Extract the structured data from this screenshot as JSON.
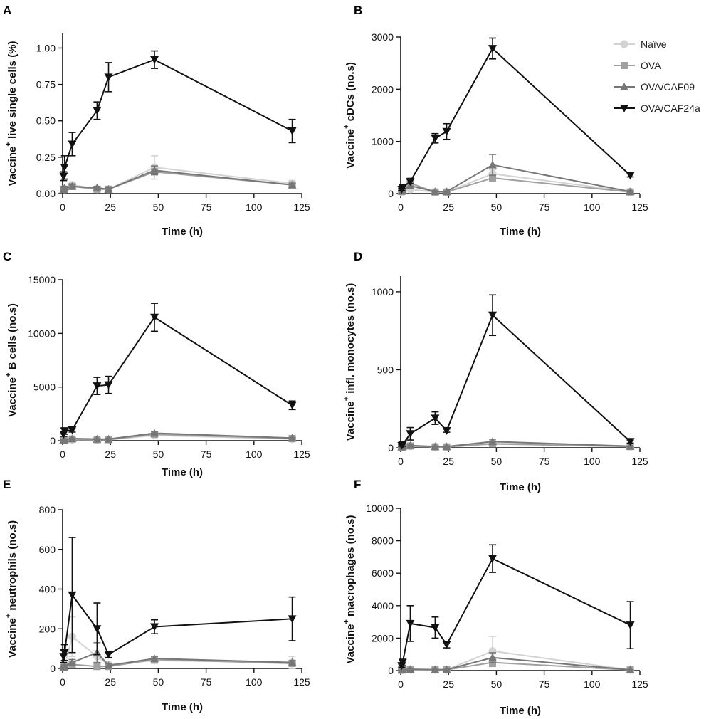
{
  "figure": {
    "x_label": "Time (h)"
  },
  "legend": [
    {
      "name": "Naïve",
      "color": "#d3d3d3",
      "marker": "circle"
    },
    {
      "name": "OVA",
      "color": "#a0a0a0",
      "marker": "square"
    },
    {
      "name": "OVA/CAF09",
      "color": "#777777",
      "marker": "triangle-up"
    },
    {
      "name": "OVA/CAF24a",
      "color": "#111111",
      "marker": "triangle-down"
    }
  ],
  "chart_data": [
    {
      "panel": "A",
      "type": "line",
      "ylabel_pre": "Vaccine",
      "ylabel_post": " live single cells (%)",
      "xlabel": "Time (h)",
      "xlim": [
        0,
        125
      ],
      "ylim": [
        0,
        1.1
      ],
      "x_ticks": [
        "0",
        "25",
        "50",
        "75",
        "100",
        "125"
      ],
      "y_ticks": [
        0,
        0.25,
        0.5,
        0.75,
        1.0
      ],
      "y_tick_labels": [
        "0.00",
        "0.25",
        "0.50",
        "0.75",
        "1.00"
      ],
      "x": [
        0.5,
        1,
        5,
        18,
        24,
        48,
        120
      ],
      "series": [
        {
          "name": "Naïve",
          "values": [
            0.03,
            0.03,
            0.06,
            0.03,
            0.03,
            0.18,
            0.07
          ],
          "err": [
            0.01,
            0.01,
            0.01,
            0.01,
            0.01,
            0.08,
            0.02
          ]
        },
        {
          "name": "OVA",
          "values": [
            0.03,
            0.03,
            0.05,
            0.03,
            0.03,
            0.15,
            0.06
          ],
          "err": [
            0.01,
            0.01,
            0.01,
            0.01,
            0.01,
            0.02,
            0.01
          ]
        },
        {
          "name": "OVA/CAF09",
          "values": [
            0.03,
            0.04,
            0.05,
            0.04,
            0.03,
            0.16,
            0.06
          ],
          "err": [
            0.01,
            0.01,
            0.01,
            0.01,
            0.01,
            0.03,
            0.01
          ]
        },
        {
          "name": "OVA/CAF24a",
          "values": [
            0.12,
            0.18,
            0.34,
            0.57,
            0.8,
            0.92,
            0.43
          ],
          "err": [
            0.03,
            0.08,
            0.08,
            0.06,
            0.1,
            0.06,
            0.08
          ]
        }
      ]
    },
    {
      "panel": "B",
      "type": "line",
      "ylabel_pre": "Vaccine",
      "ylabel_post": " cDCs (no.s)",
      "xlabel": "Time (h)",
      "xlim": [
        0,
        125
      ],
      "ylim": [
        0,
        3000
      ],
      "x_ticks": [
        "0",
        "25",
        "50",
        "75",
        "100",
        "125"
      ],
      "y_ticks": [
        0,
        1000,
        2000,
        3000
      ],
      "y_tick_labels": [
        "0",
        "1000",
        "2000",
        "3000"
      ],
      "x": [
        0.5,
        1,
        5,
        18,
        24,
        48,
        120
      ],
      "series": [
        {
          "name": "Naïve",
          "values": [
            30,
            40,
            80,
            30,
            30,
            380,
            40
          ],
          "err": [
            10,
            10,
            20,
            10,
            10,
            80,
            10
          ]
        },
        {
          "name": "OVA",
          "values": [
            40,
            60,
            200,
            30,
            30,
            300,
            30
          ],
          "err": [
            10,
            20,
            100,
            10,
            10,
            60,
            10
          ]
        },
        {
          "name": "OVA/CAF09",
          "values": [
            50,
            70,
            150,
            40,
            40,
            550,
            40
          ],
          "err": [
            10,
            20,
            50,
            10,
            10,
            200,
            10
          ]
        },
        {
          "name": "OVA/CAF24a",
          "values": [
            80,
            120,
            230,
            1060,
            1190,
            2780,
            350
          ],
          "err": [
            20,
            30,
            40,
            90,
            150,
            200,
            30
          ]
        }
      ]
    },
    {
      "panel": "C",
      "type": "line",
      "ylabel_pre": "Vaccine",
      "ylabel_post": " B cells (no.s)",
      "xlabel": "Time (h)",
      "xlim": [
        0,
        125
      ],
      "ylim": [
        0,
        15000
      ],
      "x_ticks": [
        "0",
        "25",
        "50",
        "75",
        "100",
        "125"
      ],
      "y_ticks": [
        0,
        5000,
        10000,
        15000
      ],
      "y_tick_labels": [
        "0",
        "5000",
        "10000",
        "15000"
      ],
      "x": [
        0.5,
        1,
        5,
        18,
        24,
        48,
        120
      ],
      "series": [
        {
          "name": "Naïve",
          "values": [
            50,
            60,
            100,
            80,
            80,
            500,
            150
          ],
          "err": [
            20,
            20,
            30,
            30,
            30,
            100,
            50
          ]
        },
        {
          "name": "OVA",
          "values": [
            60,
            80,
            150,
            100,
            100,
            600,
            200
          ],
          "err": [
            20,
            20,
            40,
            30,
            30,
            150,
            50
          ]
        },
        {
          "name": "OVA/CAF09",
          "values": [
            70,
            90,
            200,
            150,
            150,
            700,
            250
          ],
          "err": [
            20,
            20,
            50,
            40,
            40,
            150,
            60
          ]
        },
        {
          "name": "OVA/CAF24a",
          "values": [
            600,
            900,
            1000,
            5100,
            5200,
            11500,
            3300
          ],
          "err": [
            200,
            300,
            200,
            800,
            800,
            1300,
            400
          ]
        }
      ]
    },
    {
      "panel": "D",
      "type": "line",
      "ylabel_pre": "Vaccine",
      "ylabel_post": " infl. monocytes (no.s)",
      "xlabel": "Time (h)",
      "xlim": [
        0,
        125
      ],
      "ylim": [
        0,
        1100
      ],
      "x_ticks": [
        "0",
        "25",
        "50",
        "75",
        "100",
        "125"
      ],
      "y_ticks": [
        0,
        500,
        1000
      ],
      "y_tick_labels": [
        "0",
        "500",
        "1000"
      ],
      "x": [
        0.5,
        1,
        5,
        18,
        24,
        48,
        120
      ],
      "series": [
        {
          "name": "Naïve",
          "values": [
            5,
            5,
            10,
            5,
            5,
            30,
            8
          ],
          "err": [
            2,
            2,
            5,
            2,
            2,
            10,
            3
          ]
        },
        {
          "name": "OVA",
          "values": [
            5,
            6,
            12,
            6,
            6,
            25,
            8
          ],
          "err": [
            2,
            2,
            5,
            2,
            2,
            10,
            3
          ]
        },
        {
          "name": "OVA/CAF09",
          "values": [
            6,
            8,
            15,
            8,
            8,
            40,
            10
          ],
          "err": [
            2,
            3,
            5,
            3,
            3,
            15,
            3
          ]
        },
        {
          "name": "OVA/CAF24a",
          "values": [
            15,
            20,
            90,
            190,
            110,
            850,
            40
          ],
          "err": [
            5,
            10,
            40,
            40,
            10,
            130,
            10
          ]
        }
      ]
    },
    {
      "panel": "E",
      "type": "line",
      "ylabel_pre": "Vaccine",
      "ylabel_post": " neutrophils (no.s)",
      "xlabel": "Time (h)",
      "xlim": [
        0,
        125
      ],
      "ylim": [
        0,
        800
      ],
      "x_ticks": [
        "0",
        "25",
        "50",
        "75",
        "100",
        "125"
      ],
      "y_ticks": [
        0,
        200,
        400,
        600,
        800
      ],
      "y_tick_labels": [
        "0",
        "200",
        "400",
        "600",
        "800"
      ],
      "x": [
        0.5,
        1,
        5,
        18,
        24,
        48,
        120
      ],
      "series": [
        {
          "name": "Naïve",
          "values": [
            5,
            10,
            160,
            60,
            20,
            40,
            30
          ],
          "err": [
            3,
            5,
            100,
            30,
            10,
            15,
            30
          ]
        },
        {
          "name": "OVA",
          "values": [
            5,
            8,
            20,
            10,
            10,
            45,
            25
          ],
          "err": [
            3,
            4,
            10,
            5,
            5,
            10,
            10
          ]
        },
        {
          "name": "OVA/CAF09",
          "values": [
            8,
            12,
            30,
            80,
            15,
            50,
            30
          ],
          "err": [
            4,
            6,
            15,
            50,
            8,
            12,
            10
          ]
        },
        {
          "name": "OVA/CAF24a",
          "values": [
            60,
            80,
            370,
            200,
            70,
            210,
            250
          ],
          "err": [
            30,
            40,
            290,
            130,
            15,
            35,
            110
          ]
        }
      ]
    },
    {
      "panel": "F",
      "type": "line",
      "ylabel_pre": "Vaccine",
      "ylabel_post": " macrophages (no.s)",
      "xlabel": "Time (h)",
      "xlim": [
        0,
        125
      ],
      "ylim": [
        0,
        10000
      ],
      "x_ticks": [
        "0",
        "25",
        "50",
        "75",
        "100",
        "125"
      ],
      "y_ticks": [
        0,
        2000,
        4000,
        6000,
        8000,
        10000
      ],
      "y_tick_labels": [
        "0",
        "2000",
        "4000",
        "6000",
        "8000",
        "10000"
      ],
      "x": [
        0.5,
        1,
        5,
        18,
        24,
        48,
        120
      ],
      "series": [
        {
          "name": "Naïve",
          "values": [
            30,
            40,
            50,
            40,
            40,
            1200,
            40
          ],
          "err": [
            10,
            10,
            20,
            10,
            10,
            900,
            10
          ]
        },
        {
          "name": "OVA",
          "values": [
            30,
            40,
            60,
            50,
            50,
            500,
            40
          ],
          "err": [
            10,
            10,
            20,
            20,
            20,
            250,
            10
          ]
        },
        {
          "name": "OVA/CAF09",
          "values": [
            40,
            50,
            80,
            60,
            60,
            800,
            50
          ],
          "err": [
            10,
            10,
            30,
            20,
            20,
            300,
            10
          ]
        },
        {
          "name": "OVA/CAF24a",
          "values": [
            300,
            500,
            2900,
            2650,
            1600,
            6900,
            2800
          ],
          "err": [
            100,
            200,
            1100,
            650,
            200,
            850,
            1450
          ]
        }
      ]
    }
  ]
}
